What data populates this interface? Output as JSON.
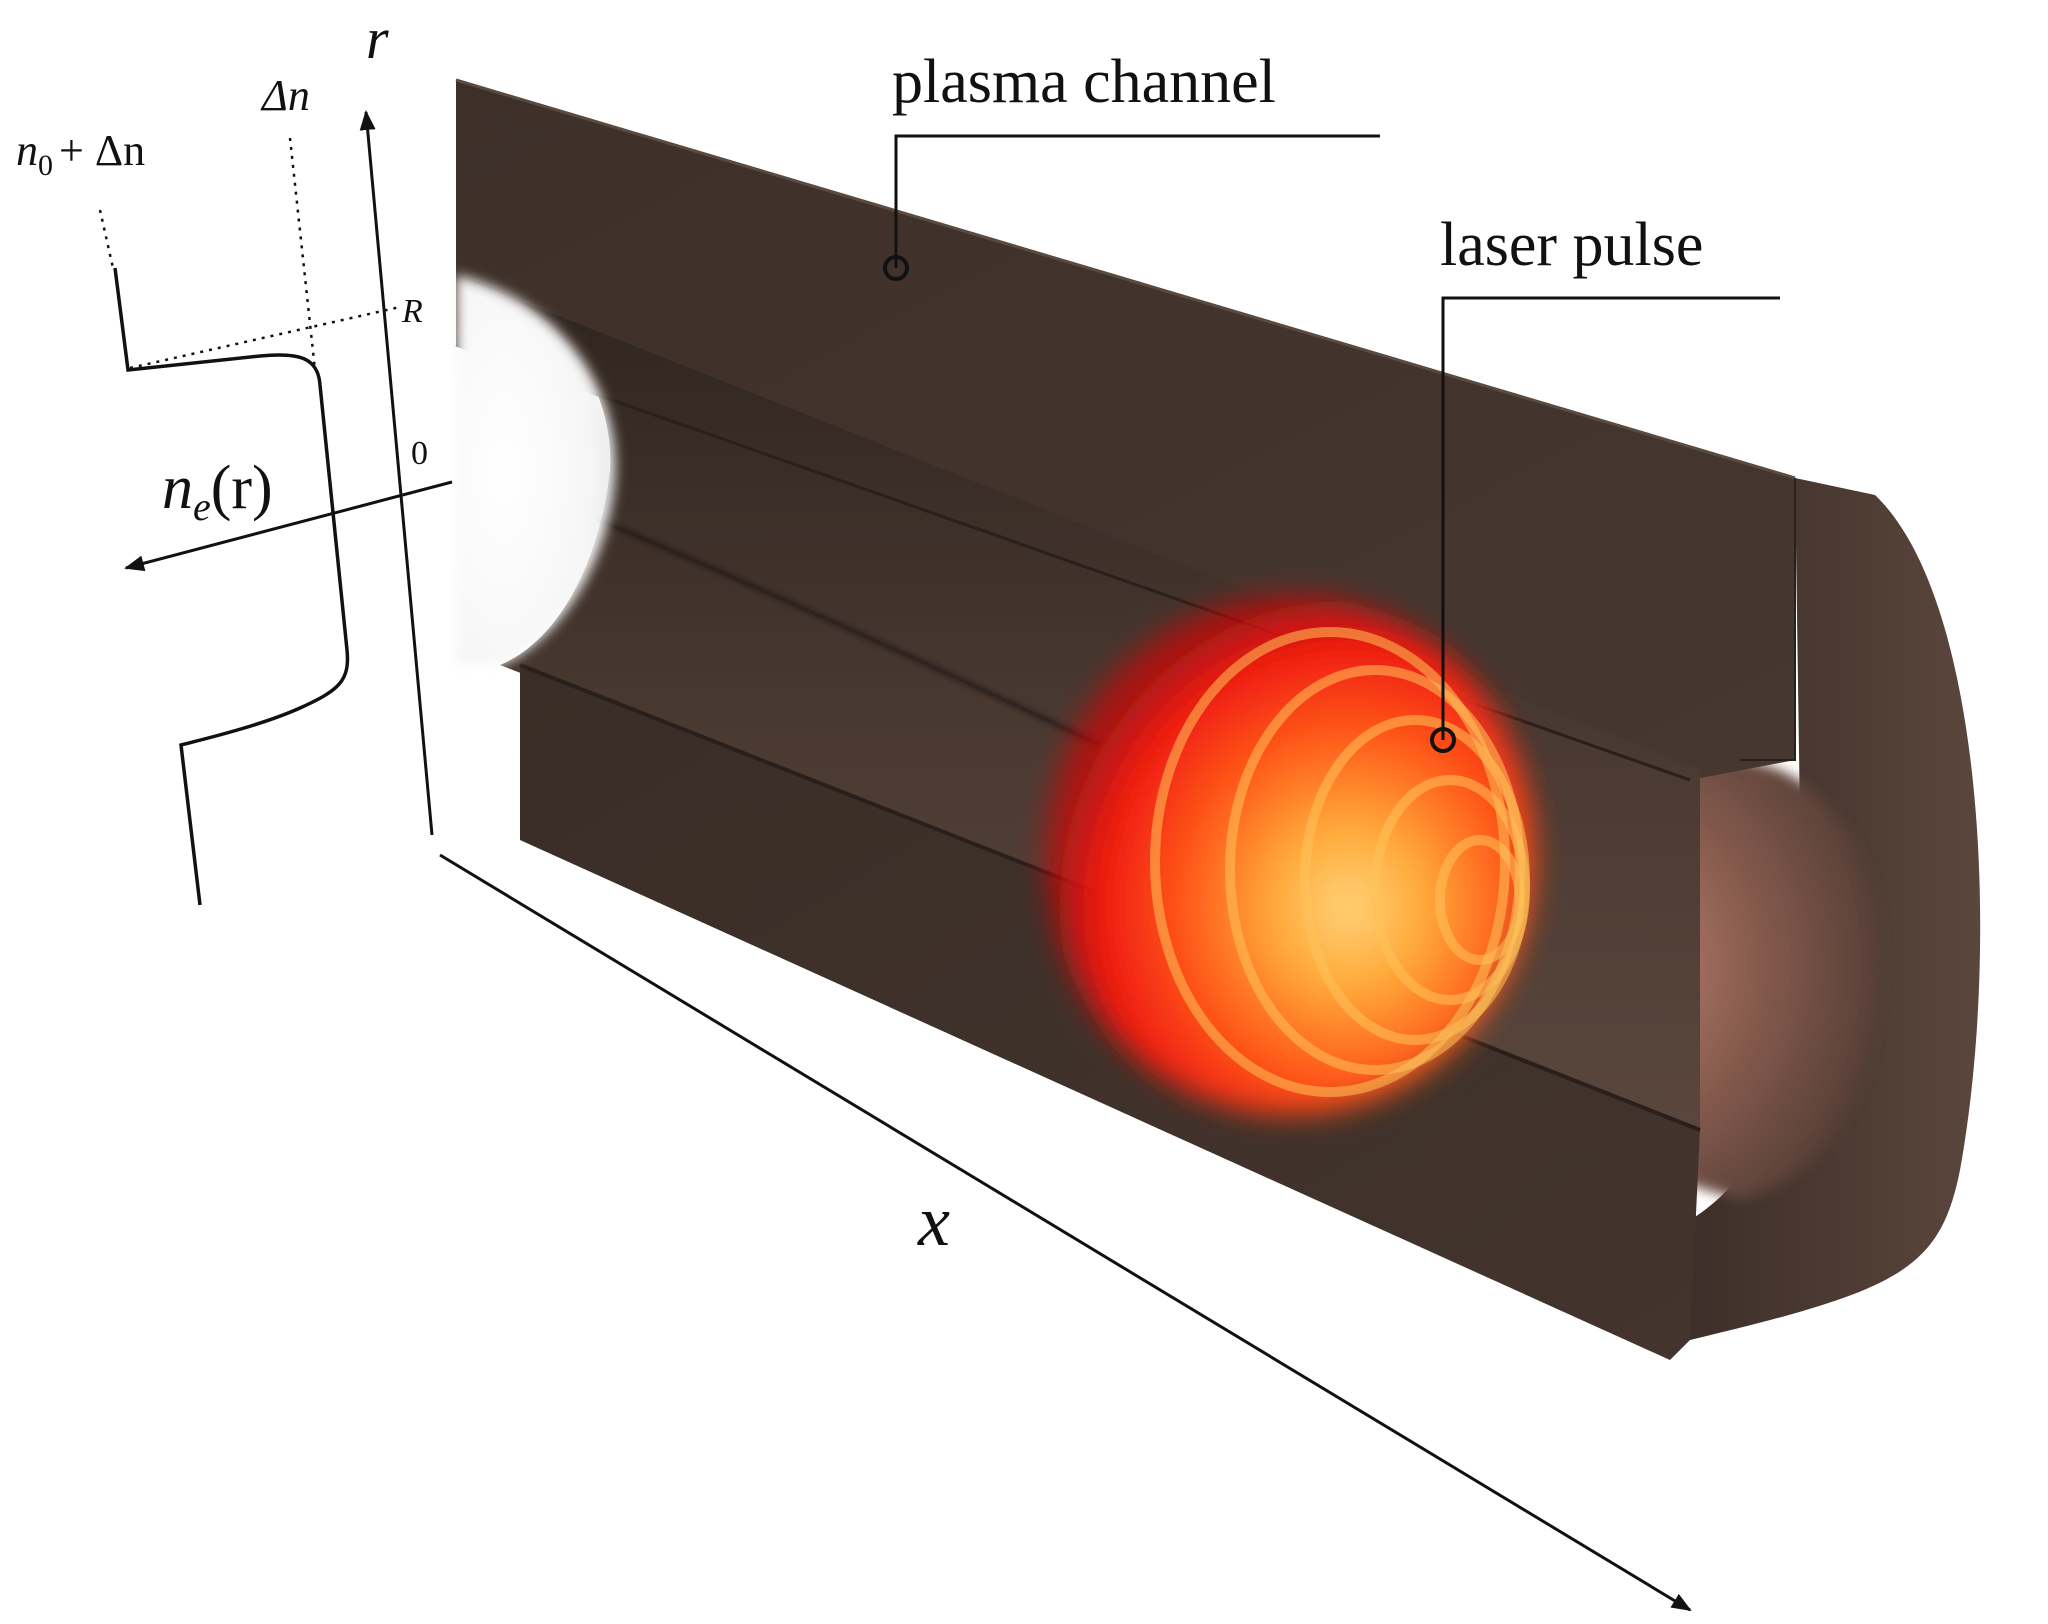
{
  "labels": {
    "plasma_channel": "plasma channel",
    "laser_pulse": "laser pulse",
    "axis_r": "r",
    "axis_x": "x",
    "density_fn": "n",
    "density_sub": "e",
    "density_arg": "(r)",
    "tick_R": "R",
    "tick_zero": "0",
    "level_top_n": "n",
    "level_top_sub": "0",
    "level_top_rest": "+ Δn",
    "level_delta": "Δn"
  },
  "colors": {
    "channel_dark": "#3b2f28",
    "channel_mid": "#4a3a31",
    "channel_inner": "#5e4840",
    "laser_core": "#ffb347",
    "laser_mid": "#ff5a1a",
    "laser_edge": "#e60a0a",
    "ink": "#111111"
  },
  "icons": {
    "leader_marker": "open-circle-marker",
    "axis_arrow": "arrowhead"
  }
}
